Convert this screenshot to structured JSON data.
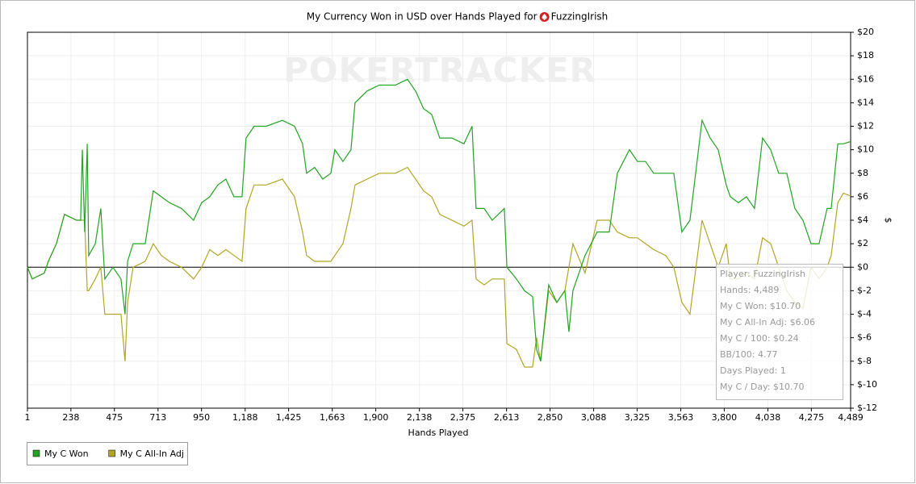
{
  "chart_data": {
    "type": "line",
    "title": "My Currency Won in USD over Hands Played for",
    "player": "FuzzingIrish",
    "watermark": "POKERTRACKER",
    "xlabel": "Hands Played",
    "ylabel": "$",
    "xlim": [
      1,
      4489
    ],
    "xticks": [
      1,
      238,
      475,
      713,
      950,
      {
        "value": 1188,
        "label": "1,188"
      },
      {
        "value": 1425,
        "label": "1,425"
      },
      {
        "value": 1663,
        "label": "1,663"
      },
      {
        "value": 1900,
        "label": "1,900"
      },
      {
        "value": 2138,
        "label": "2,138"
      },
      {
        "value": 2375,
        "label": "2,375"
      },
      {
        "value": 2613,
        "label": "2,613"
      },
      {
        "value": 2850,
        "label": "2,850"
      },
      {
        "value": 3088,
        "label": "3,088"
      },
      {
        "value": 3325,
        "label": "3,325"
      },
      {
        "value": 3563,
        "label": "3,563"
      },
      {
        "value": 3800,
        "label": "3,800"
      },
      {
        "value": 4038,
        "label": "4,038"
      },
      {
        "value": 4275,
        "label": "4,275"
      },
      {
        "value": 4489,
        "label": "4,489"
      }
    ],
    "ylim": [
      -12,
      20
    ],
    "yticks": [
      {
        "value": -12,
        "label": "$-12"
      },
      {
        "value": -10,
        "label": "$-10"
      },
      {
        "value": -8,
        "label": "$-8"
      },
      {
        "value": -6,
        "label": "$-6"
      },
      {
        "value": -4,
        "label": "$-4"
      },
      {
        "value": -2,
        "label": "$-2"
      },
      {
        "value": 0,
        "label": "$0"
      },
      {
        "value": 2,
        "label": "$2"
      },
      {
        "value": 4,
        "label": "$4"
      },
      {
        "value": 6,
        "label": "$6"
      },
      {
        "value": 8,
        "label": "$8"
      },
      {
        "value": 10,
        "label": "$10"
      },
      {
        "value": 12,
        "label": "$12"
      },
      {
        "value": 14,
        "label": "$14"
      },
      {
        "value": 16,
        "label": "$16"
      },
      {
        "value": 18,
        "label": "$18"
      },
      {
        "value": 20,
        "label": "$20"
      }
    ],
    "grid": true,
    "x": [
      1,
      27,
      93,
      115,
      159,
      203,
      269,
      291,
      300,
      313,
      327,
      335,
      371,
      401,
      423,
      467,
      511,
      533,
      547,
      577,
      643,
      687,
      731,
      775,
      841,
      907,
      951,
      995,
      1039,
      1083,
      1127,
      1171,
      1193,
      1237,
      1303,
      1391,
      1457,
      1501,
      1523,
      1567,
      1611,
      1655,
      1677,
      1721,
      1765,
      1787,
      1853,
      1919,
      2007,
      2073,
      2117,
      2161,
      2205,
      2249,
      2315,
      2381,
      2425,
      2447,
      2491,
      2535,
      2601,
      2615,
      2667,
      2711,
      2755,
      2777,
      2799,
      2843,
      2887,
      2931,
      2953,
      2975,
      3041,
      3107,
      3173,
      3217,
      3283,
      3327,
      3371,
      3415,
      3481,
      3525,
      3569,
      3613,
      3679,
      3723,
      3767,
      3811,
      3833,
      3877,
      3921,
      3965,
      4009,
      4053,
      4097,
      4141,
      4185,
      4229,
      4273,
      4317,
      4361,
      4383,
      4419,
      4450,
      4489
    ],
    "series": [
      {
        "name": "My C Won",
        "color": "#22a322",
        "values": [
          0,
          -1,
          -0.5,
          0.5,
          2,
          4.5,
          4,
          4,
          10,
          3,
          10.5,
          1,
          2,
          5,
          -1,
          0,
          -1,
          -4,
          0.5,
          2,
          2,
          6.5,
          6,
          5.5,
          5,
          4,
          5.5,
          6,
          7,
          7.5,
          6,
          6,
          11,
          12,
          12,
          12.5,
          12,
          10.5,
          8,
          8.5,
          7.5,
          8,
          10,
          9,
          10,
          14,
          15,
          15.5,
          15.5,
          16,
          15,
          13.5,
          13,
          11,
          11,
          10.5,
          12,
          5,
          5,
          4,
          5,
          0,
          -1,
          -2,
          -2.5,
          -7,
          -8,
          -1.5,
          -3,
          -2,
          -5.5,
          -2,
          1,
          3,
          3,
          8,
          10,
          9,
          9,
          8,
          8,
          8,
          3,
          4,
          12.5,
          11,
          10,
          7,
          6,
          5.5,
          6,
          5,
          11,
          10,
          8,
          8,
          5,
          4,
          2,
          2,
          5,
          5,
          10.5,
          10.5,
          10.7
        ]
      },
      {
        "name": "My C All-In Adj",
        "color": "#b0a624",
        "values": [
          0,
          -1,
          -0.5,
          0.5,
          2,
          4.5,
          4,
          4,
          4,
          4,
          -2,
          -2,
          -1,
          0,
          -4,
          -4,
          -4,
          -8,
          -3,
          0,
          0.5,
          2,
          1,
          0.5,
          0,
          -1,
          0,
          1.5,
          1,
          1.5,
          1,
          0.5,
          5,
          7,
          7,
          7.5,
          6,
          3,
          1,
          0.5,
          0.5,
          0.5,
          1,
          2,
          5,
          7,
          7.5,
          8,
          8,
          8.5,
          7.5,
          6.5,
          6,
          4.5,
          4,
          3.5,
          4,
          -1,
          -1.5,
          -1,
          -1,
          -6.5,
          -7,
          -8.5,
          -8.5,
          -6,
          -8,
          -2,
          -3,
          -2,
          0,
          2,
          -0.5,
          4,
          4,
          3,
          2.5,
          2.5,
          2,
          1.5,
          1,
          0,
          -3,
          -4,
          4,
          2,
          0,
          2,
          -1,
          -1,
          -0.5,
          -1,
          2.5,
          2,
          0,
          -2,
          -3,
          -3.5,
          0,
          -1,
          0,
          1,
          5.5,
          6.3,
          6.06
        ]
      }
    ],
    "tooltip": [
      "Player: FuzzingIrish",
      "Hands: 4,489",
      "My C Won: $10.70",
      "My C All-In Adj: $6.06",
      "My C / 100: $0.24",
      "BB/100: 4.77",
      "Days Played: 1",
      "My C / Day: $10.70"
    ]
  }
}
